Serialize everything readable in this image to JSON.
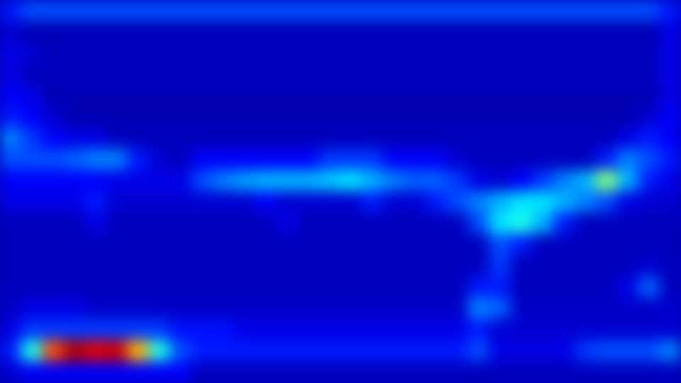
{
  "chart_data": {
    "type": "heatmap",
    "tick_labels": false,
    "cells": [
      [
        0.15,
        0.2,
        0.2,
        0.2,
        0.2,
        0.2,
        0.2,
        0.2,
        0.2,
        0.2,
        0.2,
        0.2,
        0.2,
        0.2,
        0.2,
        0.2,
        0.2,
        0.2,
        0.2,
        0.2,
        0.2,
        0.2,
        0.2,
        0.2,
        0.2,
        0.2,
        0.2,
        0.2,
        0.2,
        0.2,
        0.2,
        0.15
      ],
      [
        0.08,
        0.05,
        0.05,
        0.05,
        0.05,
        0.05,
        0.05,
        0.05,
        0.05,
        0.05,
        0.05,
        0.05,
        0.05,
        0.05,
        0.05,
        0.05,
        0.05,
        0.05,
        0.05,
        0.05,
        0.05,
        0.05,
        0.05,
        0.05,
        0.05,
        0.05,
        0.05,
        0.05,
        0.05,
        0.05,
        0.05,
        0.1
      ],
      [
        0.1,
        0.08,
        0.06,
        0.06,
        0.06,
        0.06,
        0.06,
        0.06,
        0.06,
        0.06,
        0.06,
        0.06,
        0.06,
        0.06,
        0.06,
        0.06,
        0.06,
        0.06,
        0.06,
        0.06,
        0.06,
        0.06,
        0.06,
        0.06,
        0.06,
        0.06,
        0.06,
        0.06,
        0.06,
        0.06,
        0.06,
        0.1
      ],
      [
        0.1,
        0.06,
        0.06,
        0.06,
        0.06,
        0.06,
        0.06,
        0.06,
        0.06,
        0.06,
        0.06,
        0.06,
        0.06,
        0.06,
        0.06,
        0.06,
        0.06,
        0.06,
        0.06,
        0.06,
        0.06,
        0.06,
        0.06,
        0.06,
        0.06,
        0.06,
        0.06,
        0.06,
        0.06,
        0.06,
        0.06,
        0.1
      ],
      [
        0.12,
        0.1,
        0.05,
        0.05,
        0.05,
        0.05,
        0.05,
        0.05,
        0.05,
        0.05,
        0.05,
        0.05,
        0.05,
        0.05,
        0.05,
        0.05,
        0.05,
        0.05,
        0.05,
        0.05,
        0.05,
        0.05,
        0.05,
        0.05,
        0.05,
        0.05,
        0.05,
        0.05,
        0.05,
        0.05,
        0.05,
        0.1
      ],
      [
        0.15,
        0.12,
        0.08,
        0.05,
        0.05,
        0.05,
        0.05,
        0.05,
        0.05,
        0.05,
        0.05,
        0.05,
        0.05,
        0.05,
        0.05,
        0.05,
        0.05,
        0.05,
        0.05,
        0.05,
        0.05,
        0.05,
        0.05,
        0.05,
        0.05,
        0.05,
        0.05,
        0.05,
        0.05,
        0.05,
        0.08,
        0.12
      ],
      [
        0.25,
        0.18,
        0.12,
        0.1,
        0.1,
        0.06,
        0.06,
        0.06,
        0.06,
        0.06,
        0.06,
        0.06,
        0.06,
        0.06,
        0.06,
        0.06,
        0.06,
        0.06,
        0.06,
        0.06,
        0.06,
        0.06,
        0.06,
        0.06,
        0.06,
        0.06,
        0.06,
        0.06,
        0.06,
        0.1,
        0.15,
        0.12
      ],
      [
        0.2,
        0.2,
        0.2,
        0.22,
        0.25,
        0.25,
        0.15,
        0.08,
        0.06,
        0.12,
        0.12,
        0.12,
        0.12,
        0.12,
        0.12,
        0.18,
        0.18,
        0.18,
        0.12,
        0.12,
        0.12,
        0.08,
        0.06,
        0.06,
        0.06,
        0.06,
        0.06,
        0.06,
        0.15,
        0.25,
        0.2,
        0.15
      ],
      [
        0.12,
        0.12,
        0.12,
        0.12,
        0.12,
        0.1,
        0.1,
        0.1,
        0.1,
        0.2,
        0.25,
        0.28,
        0.3,
        0.3,
        0.3,
        0.32,
        0.35,
        0.3,
        0.25,
        0.22,
        0.22,
        0.18,
        0.1,
        0.08,
        0.12,
        0.18,
        0.25,
        0.3,
        0.5,
        0.3,
        0.15,
        0.1
      ],
      [
        0.1,
        0.1,
        0.1,
        0.1,
        0.15,
        0.08,
        0.08,
        0.08,
        0.08,
        0.08,
        0.08,
        0.08,
        0.12,
        0.08,
        0.08,
        0.08,
        0.08,
        0.15,
        0.08,
        0.08,
        0.15,
        0.2,
        0.25,
        0.3,
        0.35,
        0.35,
        0.3,
        0.25,
        0.2,
        0.1,
        0.08,
        0.08
      ],
      [
        0.06,
        0.06,
        0.06,
        0.06,
        0.1,
        0.06,
        0.06,
        0.06,
        0.06,
        0.06,
        0.06,
        0.06,
        0.06,
        0.1,
        0.06,
        0.06,
        0.06,
        0.06,
        0.06,
        0.06,
        0.06,
        0.06,
        0.2,
        0.35,
        0.4,
        0.3,
        0.15,
        0.06,
        0.06,
        0.06,
        0.06,
        0.06
      ],
      [
        0.06,
        0.06,
        0.06,
        0.06,
        0.06,
        0.06,
        0.06,
        0.06,
        0.06,
        0.06,
        0.06,
        0.06,
        0.06,
        0.06,
        0.06,
        0.06,
        0.06,
        0.06,
        0.06,
        0.06,
        0.06,
        0.06,
        0.06,
        0.2,
        0.15,
        0.06,
        0.06,
        0.06,
        0.06,
        0.06,
        0.06,
        0.06
      ],
      [
        0.06,
        0.06,
        0.06,
        0.06,
        0.06,
        0.06,
        0.06,
        0.06,
        0.06,
        0.06,
        0.06,
        0.06,
        0.06,
        0.06,
        0.06,
        0.06,
        0.06,
        0.06,
        0.06,
        0.06,
        0.06,
        0.06,
        0.06,
        0.18,
        0.06,
        0.06,
        0.06,
        0.06,
        0.06,
        0.06,
        0.08,
        0.06
      ],
      [
        0.06,
        0.06,
        0.06,
        0.06,
        0.06,
        0.06,
        0.06,
        0.06,
        0.06,
        0.06,
        0.06,
        0.06,
        0.06,
        0.06,
        0.06,
        0.06,
        0.06,
        0.06,
        0.06,
        0.06,
        0.06,
        0.06,
        0.15,
        0.15,
        0.06,
        0.06,
        0.06,
        0.06,
        0.06,
        0.1,
        0.22,
        0.06
      ],
      [
        0.07,
        0.1,
        0.1,
        0.1,
        0.07,
        0.07,
        0.07,
        0.07,
        0.07,
        0.07,
        0.07,
        0.07,
        0.07,
        0.07,
        0.07,
        0.07,
        0.07,
        0.07,
        0.07,
        0.07,
        0.07,
        0.07,
        0.25,
        0.22,
        0.07,
        0.07,
        0.07,
        0.07,
        0.07,
        0.07,
        0.07,
        0.08
      ],
      [
        0.1,
        0.18,
        0.18,
        0.18,
        0.18,
        0.18,
        0.18,
        0.18,
        0.14,
        0.14,
        0.14,
        0.1,
        0.1,
        0.1,
        0.1,
        0.1,
        0.1,
        0.1,
        0.1,
        0.1,
        0.1,
        0.1,
        0.15,
        0.08,
        0.08,
        0.08,
        0.08,
        0.08,
        0.08,
        0.08,
        0.08,
        0.08
      ],
      [
        0.15,
        0.4,
        0.8,
        0.95,
        0.9,
        0.92,
        0.7,
        0.4,
        0.2,
        0.15,
        0.15,
        0.15,
        0.15,
        0.15,
        0.15,
        0.15,
        0.15,
        0.15,
        0.15,
        0.15,
        0.15,
        0.15,
        0.2,
        0.1,
        0.1,
        0.1,
        0.1,
        0.18,
        0.2,
        0.2,
        0.2,
        0.25
      ],
      [
        0.08,
        0.12,
        0.12,
        0.12,
        0.12,
        0.12,
        0.12,
        0.12,
        0.12,
        0.06,
        0.06,
        0.06,
        0.06,
        0.06,
        0.06,
        0.06,
        0.06,
        0.06,
        0.06,
        0.06,
        0.06,
        0.06,
        0.06,
        0.06,
        0.06,
        0.06,
        0.06,
        0.06,
        0.06,
        0.06,
        0.06,
        0.06
      ]
    ]
  }
}
